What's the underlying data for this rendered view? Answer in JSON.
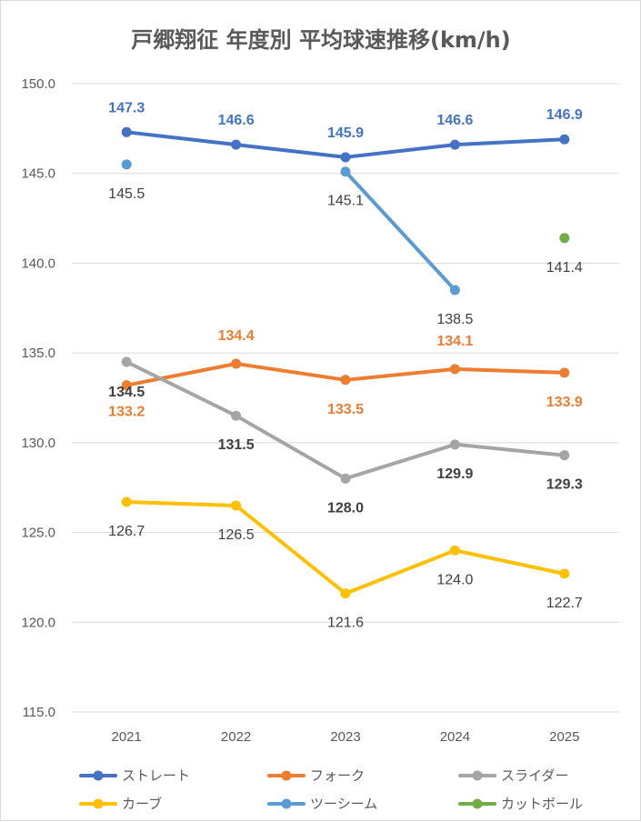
{
  "chart_data": {
    "type": "line",
    "title": "戸郷翔征 年度別 平均球速推移(km/h)",
    "xlabel": "",
    "ylabel": "",
    "categories": [
      "2021",
      "2022",
      "2023",
      "2024",
      "2025"
    ],
    "ylim": [
      115.0,
      150.0
    ],
    "yticks": [
      "150.0",
      "145.0",
      "140.0",
      "135.0",
      "130.0",
      "125.0",
      "120.0",
      "115.0"
    ],
    "grid": true,
    "legend_position": "bottom",
    "series": [
      {
        "name": "ストレート",
        "color": "#4472c4",
        "values": [
          147.3,
          146.6,
          145.9,
          146.6,
          146.9
        ],
        "labels": [
          "147.3",
          "146.6",
          "145.9",
          "146.6",
          "146.9"
        ],
        "label_color": "#4472c4",
        "label_bold": true
      },
      {
        "name": "フォーク",
        "color": "#ed7d31",
        "values": [
          133.2,
          134.4,
          133.5,
          134.1,
          133.9
        ],
        "labels": [
          "133.2",
          "134.4",
          "133.5",
          "134.1",
          "133.9"
        ],
        "label_color": "#ed7d31",
        "label_bold": true
      },
      {
        "name": "スライダー",
        "color": "#a5a5a5",
        "values": [
          134.5,
          131.5,
          128.0,
          129.9,
          129.3
        ],
        "labels": [
          "134.5",
          "131.5",
          "128.0",
          "129.9",
          "129.3"
        ],
        "label_color": "#404040",
        "label_bold": true
      },
      {
        "name": "カーブ",
        "color": "#ffc000",
        "values": [
          126.7,
          126.5,
          121.6,
          124.0,
          122.7
        ],
        "labels": [
          "126.7",
          "126.5",
          "121.6",
          "124.0",
          "122.7"
        ],
        "label_color": "#404040",
        "label_bold": false
      },
      {
        "name": "ツーシーム",
        "color": "#5b9bd5",
        "values": [
          145.5,
          null,
          145.1,
          138.5,
          null
        ],
        "labels": [
          "145.5",
          null,
          "145.1",
          "138.5",
          null
        ],
        "label_color": "#404040",
        "label_bold": false
      },
      {
        "name": "カットボール",
        "color": "#70ad47",
        "values": [
          null,
          null,
          null,
          null,
          141.4
        ],
        "labels": [
          null,
          null,
          null,
          null,
          "141.4"
        ],
        "label_color": "#404040",
        "label_bold": false
      }
    ]
  }
}
